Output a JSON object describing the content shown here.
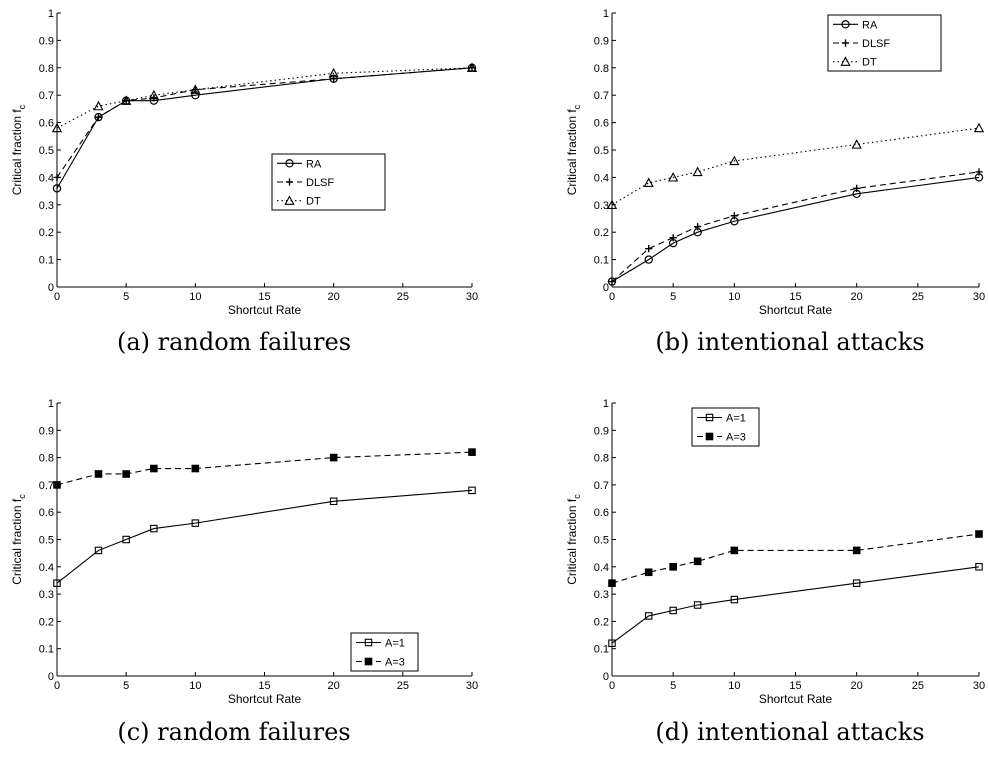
{
  "chart_data": [
    {
      "type": "line",
      "caption": "(a) random failures",
      "xlabel": "Shortcut Rate",
      "ylabel": "Critical fraction f",
      "ylabel_subscript": "c",
      "xlim": [
        0,
        30
      ],
      "ylim": [
        0,
        1
      ],
      "xticks": [
        "0",
        "5",
        "10",
        "15",
        "20",
        "25",
        "30"
      ],
      "yticks": [
        "0",
        "0.1",
        "0.2",
        "0.3",
        "0.4",
        "0.5",
        "0.6",
        "0.7",
        "0.8",
        "0.9",
        "1"
      ],
      "grid": false,
      "legend_position": "center-right",
      "x": [
        0,
        3,
        5,
        7,
        10,
        20,
        30
      ],
      "series": [
        {
          "name": "RA",
          "values": [
            0.36,
            0.62,
            0.68,
            0.68,
            0.7,
            0.76,
            0.8
          ],
          "line": "solid",
          "marker": "circle"
        },
        {
          "name": "DLSF",
          "values": [
            0.4,
            0.62,
            0.68,
            0.69,
            0.72,
            0.76,
            0.8
          ],
          "line": "dashed",
          "marker": "plus"
        },
        {
          "name": "DT",
          "values": [
            0.58,
            0.66,
            0.68,
            0.7,
            0.72,
            0.78,
            0.8
          ],
          "line": "dotted",
          "marker": "triangle"
        }
      ]
    },
    {
      "type": "line",
      "caption": "(b) intentional attacks",
      "xlabel": "Shortcut Rate",
      "ylabel": "Critical fraction f",
      "ylabel_subscript": "c",
      "xlim": [
        0,
        30
      ],
      "ylim": [
        0,
        1
      ],
      "xticks": [
        "0",
        "5",
        "10",
        "15",
        "20",
        "25",
        "30"
      ],
      "yticks": [
        "0",
        "0.1",
        "0.2",
        "0.3",
        "0.4",
        "0.5",
        "0.6",
        "0.7",
        "0.8",
        "0.9",
        "1"
      ],
      "grid": false,
      "legend_position": "top-right",
      "x": [
        0,
        3,
        5,
        7,
        10,
        20,
        30
      ],
      "series": [
        {
          "name": "RA",
          "values": [
            0.02,
            0.1,
            0.16,
            0.2,
            0.24,
            0.34,
            0.4
          ],
          "line": "solid",
          "marker": "circle"
        },
        {
          "name": "DLSF",
          "values": [
            0.02,
            0.14,
            0.18,
            0.22,
            0.26,
            0.36,
            0.42
          ],
          "line": "dashed",
          "marker": "plus"
        },
        {
          "name": "DT",
          "values": [
            0.3,
            0.38,
            0.4,
            0.42,
            0.46,
            0.52,
            0.58
          ],
          "line": "dotted",
          "marker": "triangle"
        }
      ]
    },
    {
      "type": "line",
      "caption": "(c) random failures",
      "xlabel": "Shortcut Rate",
      "ylabel": "Critical fraction f",
      "ylabel_subscript": "c",
      "xlim": [
        0,
        30
      ],
      "ylim": [
        0,
        1
      ],
      "xticks": [
        "0",
        "5",
        "10",
        "15",
        "20",
        "25",
        "30"
      ],
      "yticks": [
        "0",
        "0.1",
        "0.2",
        "0.3",
        "0.4",
        "0.5",
        "0.6",
        "0.7",
        "0.8",
        "0.9",
        "1"
      ],
      "grid": false,
      "legend_position": "bottom-right",
      "x": [
        0,
        3,
        5,
        7,
        10,
        20,
        30
      ],
      "series": [
        {
          "name": "A=1",
          "values": [
            0.34,
            0.46,
            0.5,
            0.54,
            0.56,
            0.64,
            0.68
          ],
          "line": "solid",
          "marker": "square-open"
        },
        {
          "name": "A=3",
          "values": [
            0.7,
            0.74,
            0.74,
            0.76,
            0.76,
            0.8,
            0.82
          ],
          "line": "dashed",
          "marker": "square-filled"
        }
      ]
    },
    {
      "type": "line",
      "caption": "(d) intentional attacks",
      "xlabel": "Shortcut Rate",
      "ylabel": "Critical fraction f",
      "ylabel_subscript": "c",
      "xlim": [
        0,
        30
      ],
      "ylim": [
        0,
        1
      ],
      "xticks": [
        "0",
        "5",
        "10",
        "15",
        "20",
        "25",
        "30"
      ],
      "yticks": [
        "0",
        "0.1",
        "0.2",
        "0.3",
        "0.4",
        "0.5",
        "0.6",
        "0.7",
        "0.8",
        "0.9",
        "1"
      ],
      "grid": false,
      "legend_position": "top-left",
      "x": [
        0,
        3,
        5,
        7,
        10,
        20,
        30
      ],
      "series": [
        {
          "name": "A=1",
          "values": [
            0.12,
            0.22,
            0.24,
            0.26,
            0.28,
            0.34,
            0.4
          ],
          "line": "solid",
          "marker": "square-open"
        },
        {
          "name": "A=3",
          "values": [
            0.34,
            0.38,
            0.4,
            0.42,
            0.46,
            0.46,
            0.52
          ],
          "line": "dashed",
          "marker": "square-filled"
        }
      ]
    }
  ]
}
